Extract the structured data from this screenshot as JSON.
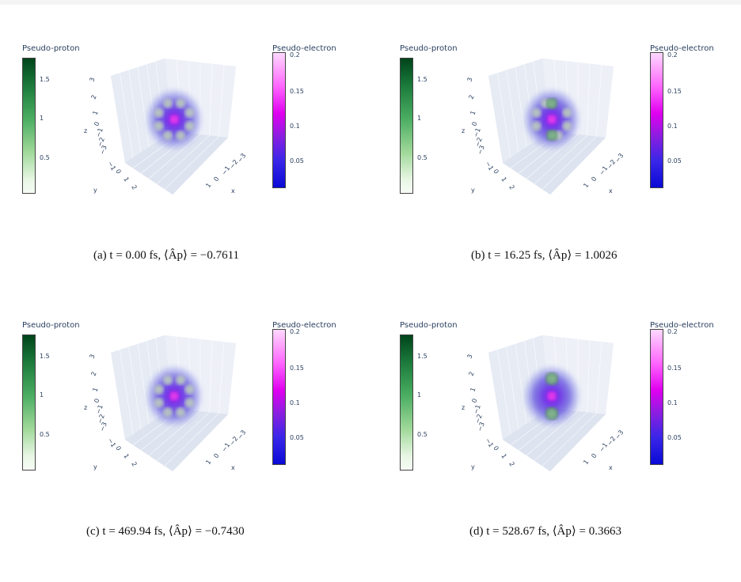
{
  "panels": [
    {
      "id": "a",
      "proton_title": "Pseudo-proton",
      "electron_title": "Pseudo-electron",
      "proton_ticks": [
        "1.5",
        "1",
        "0.5"
      ],
      "electron_ticks": [
        "0.2",
        "0.15",
        "0.1",
        "0.05"
      ],
      "axis_labels": {
        "x": "x",
        "y": "y",
        "z": "z"
      },
      "z_ticks": [
        "3",
        "2",
        "1",
        "0",
        "−1",
        "−2",
        "−3"
      ],
      "x_ticks": [
        "−3",
        "−2",
        "−1",
        "0",
        "1"
      ],
      "y_ticks": [
        "−1",
        "0",
        "1",
        "2"
      ],
      "caption": "(a) t = 0.00 fs, ⟨Âp⟩ = −0.7611",
      "variant": "ring"
    },
    {
      "id": "b",
      "proton_title": "Pseudo-proton",
      "electron_title": "Pseudo-electron",
      "proton_ticks": [
        "1.5",
        "1",
        "0.5"
      ],
      "electron_ticks": [
        "0.2",
        "0.15",
        "0.1",
        "0.05"
      ],
      "axis_labels": {
        "x": "x",
        "y": "y",
        "z": "z"
      },
      "z_ticks": [
        "3",
        "2",
        "1",
        "0",
        "−1",
        "−2",
        "−3"
      ],
      "x_ticks": [
        "−3",
        "−2",
        "−1",
        "0",
        "1"
      ],
      "y_ticks": [
        "−1",
        "0",
        "1",
        "2"
      ],
      "caption": "(b) t = 16.25 fs, ⟨Âp⟩ = 1.0026",
      "variant": "polar"
    },
    {
      "id": "c",
      "proton_title": "Pseudo-proton",
      "electron_title": "Pseudo-electron",
      "proton_ticks": [
        "1.5",
        "1",
        "0.5"
      ],
      "electron_ticks": [
        "0.2",
        "0.15",
        "0.1",
        "0.05"
      ],
      "axis_labels": {
        "x": "x",
        "y": "y",
        "z": "z"
      },
      "z_ticks": [
        "3",
        "2",
        "1",
        "0",
        "−1",
        "−2",
        "−3"
      ],
      "x_ticks": [
        "−3",
        "−2",
        "−1",
        "0",
        "1"
      ],
      "y_ticks": [
        "−1",
        "0",
        "1",
        "2"
      ],
      "caption": "(c) t = 469.94 fs, ⟨Âp⟩ = −0.7430",
      "variant": "ring"
    },
    {
      "id": "d",
      "proton_title": "Pseudo-proton",
      "electron_title": "Pseudo-electron",
      "proton_ticks": [
        "1.5",
        "1",
        "0.5"
      ],
      "electron_ticks": [
        "0.2",
        "0.15",
        "0.1",
        "0.05"
      ],
      "axis_labels": {
        "x": "x",
        "y": "y",
        "z": "z"
      },
      "z_ticks": [
        "3",
        "2",
        "1",
        "0",
        "−1",
        "−2",
        "−3"
      ],
      "x_ticks": [
        "−3",
        "−2",
        "−1",
        "0",
        "1"
      ],
      "y_ticks": [
        "−1",
        "0",
        "1",
        "2"
      ],
      "caption": "(d) t = 528.67 fs, ⟨Âp⟩ = 0.3663",
      "variant": "polar-strong"
    }
  ]
}
